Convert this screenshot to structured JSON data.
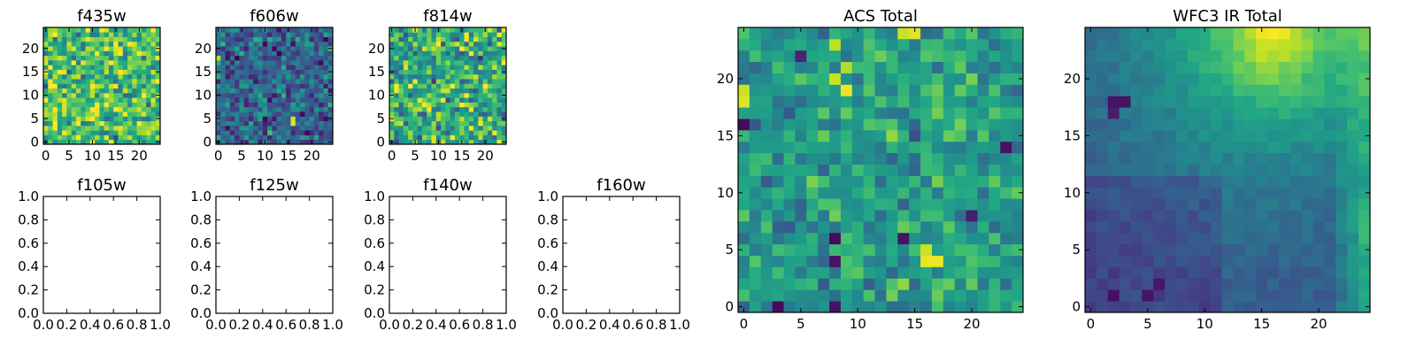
{
  "figure": {
    "colormap": "viridis",
    "colormap_range": [
      0,
      1
    ]
  },
  "chart_data": [
    {
      "id": "f435w",
      "type": "heatmap",
      "title": "f435w",
      "grid_size": 25,
      "xlim": [
        -0.5,
        24.5
      ],
      "ylim": [
        -0.5,
        24.5
      ],
      "xticks": [
        0,
        5,
        10,
        15,
        20
      ],
      "yticks": [
        0,
        5,
        10,
        15,
        20
      ],
      "value_mean": 0.7,
      "value_spread": 0.26,
      "seed": 11,
      "bright_spots": [],
      "dark_spots": [],
      "gradient": null
    },
    {
      "id": "f606w",
      "type": "heatmap",
      "title": "f606w",
      "grid_size": 25,
      "xlim": [
        -0.5,
        24.5
      ],
      "ylim": [
        -0.5,
        24.5
      ],
      "xticks": [
        0,
        5,
        10,
        15,
        20
      ],
      "yticks": [
        0,
        5,
        10,
        15,
        20
      ],
      "value_mean": 0.32,
      "value_spread": 0.2,
      "seed": 23,
      "bright_spots": [
        [
          16,
          4,
          0.95
        ],
        [
          16,
          5,
          0.95
        ],
        [
          0,
          18,
          0.9
        ]
      ],
      "dark_spots": [],
      "gradient": null
    },
    {
      "id": "f814w",
      "type": "heatmap",
      "title": "f814w",
      "grid_size": 25,
      "xlim": [
        -0.5,
        24.5
      ],
      "ylim": [
        -0.5,
        24.5
      ],
      "xticks": [
        0,
        5,
        10,
        15,
        20
      ],
      "yticks": [
        0,
        5,
        10,
        15,
        20
      ],
      "value_mean": 0.62,
      "value_spread": 0.26,
      "seed": 37,
      "bright_spots": [
        [
          9,
          20,
          0.9
        ],
        [
          8,
          8,
          0.9
        ]
      ],
      "dark_spots": [],
      "gradient": null
    },
    {
      "id": "f105w",
      "type": "empty",
      "title": "f105w",
      "xlim": [
        0,
        1
      ],
      "ylim": [
        0,
        1
      ],
      "xticks": [
        "0.0",
        "0.2",
        "0.4",
        "0.6",
        "0.8",
        "1.0"
      ],
      "yticks": [
        "0.0",
        "0.2",
        "0.4",
        "0.6",
        "0.8",
        "1.0"
      ]
    },
    {
      "id": "f125w",
      "type": "empty",
      "title": "f125w",
      "xlim": [
        0,
        1
      ],
      "ylim": [
        0,
        1
      ],
      "xticks": [
        "0.0",
        "0.2",
        "0.4",
        "0.6",
        "0.8",
        "1.0"
      ],
      "yticks": [
        "0.0",
        "0.2",
        "0.4",
        "0.6",
        "0.8",
        "1.0"
      ]
    },
    {
      "id": "f140w",
      "type": "empty",
      "title": "f140w",
      "xlim": [
        0,
        1
      ],
      "ylim": [
        0,
        1
      ],
      "xticks": [
        "0.0",
        "0.2",
        "0.4",
        "0.6",
        "0.8",
        "1.0"
      ],
      "yticks": [
        "0.0",
        "0.2",
        "0.4",
        "0.6",
        "0.8",
        "1.0"
      ]
    },
    {
      "id": "f160w",
      "type": "empty",
      "title": "f160w",
      "xlim": [
        0,
        1
      ],
      "ylim": [
        0,
        1
      ],
      "xticks": [
        "0.0",
        "0.2",
        "0.4",
        "0.6",
        "0.8",
        "1.0"
      ],
      "yticks": [
        "0.0",
        "0.2",
        "0.4",
        "0.6",
        "0.8",
        "1.0"
      ]
    },
    {
      "id": "acs-total",
      "type": "heatmap",
      "title": "ACS Total",
      "grid_size": 25,
      "xlim": [
        -0.5,
        24.5
      ],
      "ylim": [
        -0.5,
        24.5
      ],
      "xticks": [
        0,
        5,
        10,
        15,
        20
      ],
      "yticks": [
        0,
        5,
        10,
        15,
        20
      ],
      "value_mean": 0.55,
      "value_spread": 0.16,
      "seed": 53,
      "bright_spots": [
        [
          8,
          20,
          0.92
        ],
        [
          9,
          21,
          0.88
        ],
        [
          9,
          19,
          0.98
        ],
        [
          0,
          18,
          0.95
        ],
        [
          0,
          19,
          0.92
        ],
        [
          16,
          4,
          0.97
        ],
        [
          17,
          4,
          0.97
        ],
        [
          16,
          5,
          0.92
        ],
        [
          8,
          23,
          0.9
        ],
        [
          14,
          24,
          0.92
        ],
        [
          15,
          24,
          0.95
        ]
      ],
      "dark_spots": [
        [
          0,
          16,
          0.03
        ],
        [
          8,
          6,
          0.03
        ],
        [
          8,
          4,
          0.05
        ],
        [
          14,
          6,
          0.05
        ],
        [
          3,
          0,
          0.03
        ],
        [
          8,
          0,
          0.05
        ],
        [
          23,
          14,
          0.05
        ],
        [
          20,
          8,
          0.08
        ],
        [
          5,
          22,
          0.1
        ]
      ],
      "gradient": null
    },
    {
      "id": "wfc3-ir-total",
      "type": "heatmap",
      "title": "WFC3 IR Total",
      "grid_size": 25,
      "xlim": [
        -0.5,
        24.5
      ],
      "ylim": [
        -0.5,
        24.5
      ],
      "xticks": [
        0,
        5,
        10,
        15,
        20
      ],
      "yticks": [
        0,
        5,
        10,
        15,
        20
      ],
      "value_mean": 0.25,
      "value_spread": 0.05,
      "seed": 71,
      "bright_spots": [
        [
          15,
          24,
          0.98
        ],
        [
          16,
          24,
          1.0
        ],
        [
          17,
          24,
          0.98
        ],
        [
          16,
          23,
          0.92
        ],
        [
          17,
          23,
          0.9
        ],
        [
          18,
          24,
          0.88
        ]
      ],
      "dark_spots": [
        [
          2,
          18,
          0.05
        ],
        [
          3,
          18,
          0.05
        ],
        [
          2,
          17,
          0.08
        ],
        [
          2,
          1,
          0.04
        ],
        [
          5,
          1,
          0.05
        ],
        [
          6,
          2,
          0.06
        ]
      ],
      "gradient": {
        "peak": [
          16,
          24
        ],
        "peak_value": 0.82,
        "falloff": 0.055,
        "edge_bright": 0.6
      }
    }
  ]
}
